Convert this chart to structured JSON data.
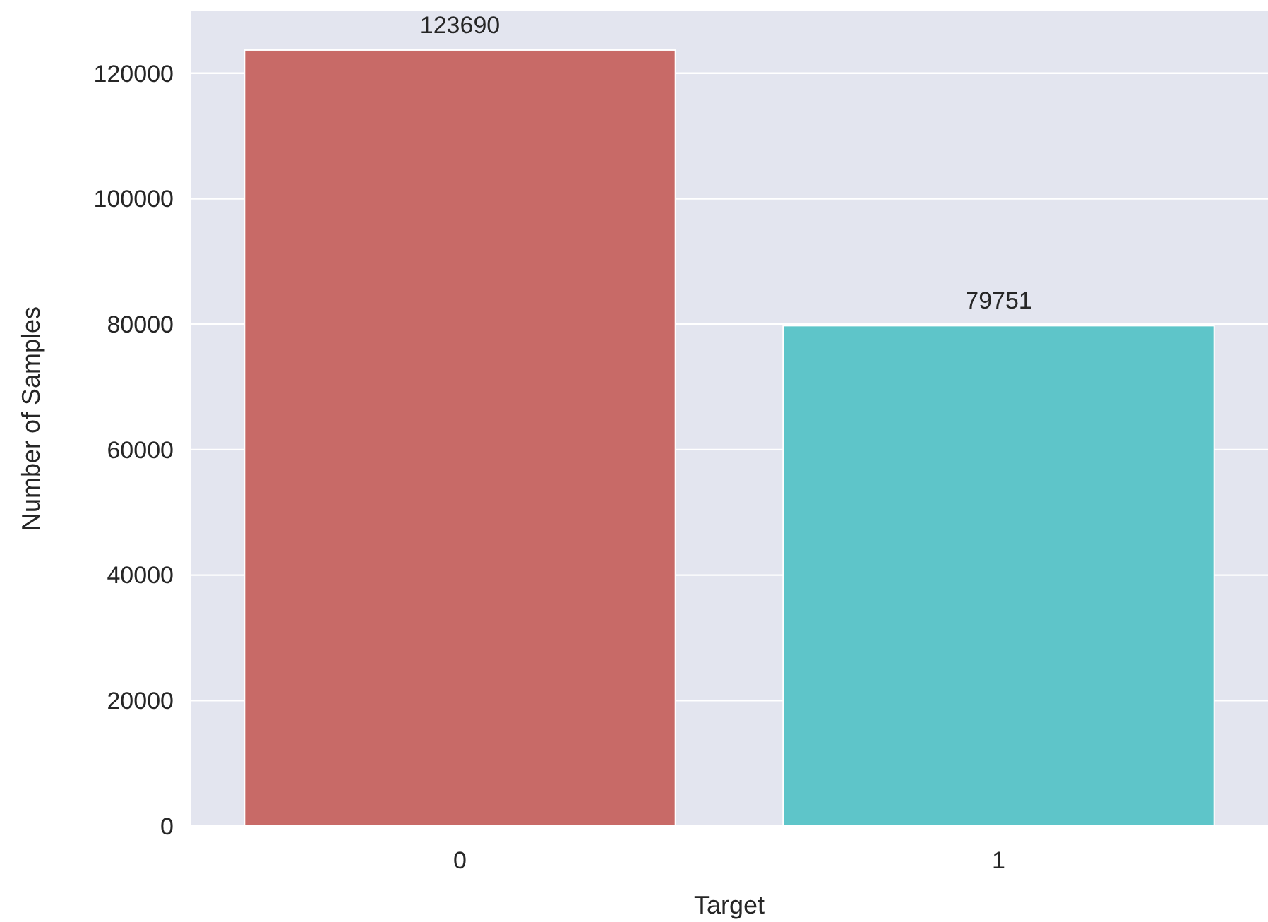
{
  "chart_data": {
    "type": "bar",
    "xlabel": "Target",
    "ylabel": "Number of Samples",
    "categories": [
      "0",
      "1"
    ],
    "values": [
      123690,
      79751
    ],
    "colors": [
      "#c86a67",
      "#5ec5c9"
    ],
    "ylim": [
      0,
      129874
    ],
    "yticks": [
      0,
      20000,
      40000,
      60000,
      80000,
      100000,
      120000
    ],
    "grid": "y",
    "data_labels": true
  }
}
